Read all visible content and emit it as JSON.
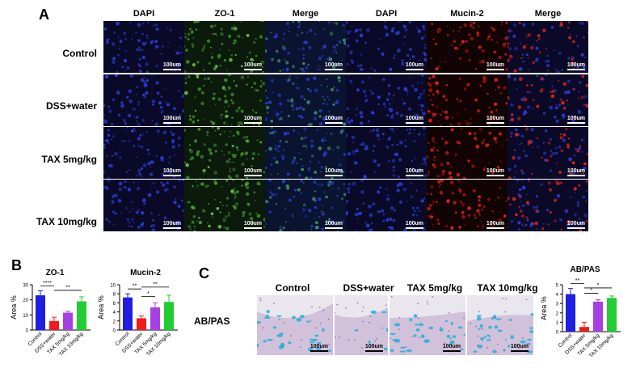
{
  "panels": {
    "a": "A",
    "b": "B",
    "c": "C"
  },
  "panel_a": {
    "columns": [
      "DAPI",
      "ZO-1",
      "Merge",
      "DAPI",
      "Mucin-2",
      "Merge"
    ],
    "rows": [
      "Control",
      "DSS+water",
      "TAX 5mg/kg",
      "TAX 10mg/kg"
    ],
    "scale_label": "100um"
  },
  "panel_c": {
    "columns": [
      "Control",
      "DSS+water",
      "TAX 5mg/kg",
      "TAX 10mg/kg"
    ],
    "row_label": "AB/PAS",
    "scale_label": "100um"
  },
  "colors": {
    "Control": "#1f1fe0",
    "DSS+water": "#ee1c1c",
    "TAX 5mg/kg": "#a640e0",
    "TAX 10mg/kg": "#22cc33"
  },
  "chart_data": [
    {
      "type": "bar",
      "title": "ZO-1",
      "ylabel": "Area %",
      "categories": [
        "Control",
        "DSS+water",
        "TAX 5mg/kg",
        "TAX 10mg/kg"
      ],
      "values": [
        23,
        6,
        11.5,
        19
      ],
      "errors": [
        3,
        2.5,
        1,
        3
      ],
      "ylim": [
        0,
        30
      ],
      "yticks": [
        0,
        10,
        20,
        30
      ],
      "significance": [
        {
          "from": 0,
          "to": 1,
          "label": "****"
        },
        {
          "from": 1,
          "to": 3,
          "label": "**"
        }
      ]
    },
    {
      "type": "bar",
      "title": "Mucin-2",
      "ylabel": "Area %",
      "categories": [
        "Control",
        "DSS+water",
        "TAX 5mg/kg",
        "TAX 10mg/kg"
      ],
      "values": [
        7.2,
        2.6,
        5,
        6.2
      ],
      "errors": [
        0.8,
        0.5,
        1,
        1.5
      ],
      "ylim": [
        0,
        10
      ],
      "yticks": [
        0,
        2,
        4,
        6,
        8,
        10
      ],
      "significance": [
        {
          "from": 0,
          "to": 1,
          "label": "**"
        },
        {
          "from": 1,
          "to": 2,
          "label": "*"
        },
        {
          "from": 1,
          "to": 3,
          "label": "**"
        }
      ]
    },
    {
      "type": "bar",
      "title": "AB/PAS",
      "ylabel": "Area %",
      "categories": [
        "Control",
        "DSS+water",
        "TAX 5mg/kg",
        "TAX 10mg/kg"
      ],
      "values": [
        4,
        0.5,
        3.2,
        3.6
      ],
      "errors": [
        0.6,
        0.5,
        0.2,
        0.2
      ],
      "ylim": [
        0,
        5
      ],
      "yticks": [
        0,
        1,
        2,
        3,
        4,
        5
      ],
      "significance": [
        {
          "from": 0,
          "to": 1,
          "label": "**"
        },
        {
          "from": 1,
          "to": 2,
          "label": "*"
        },
        {
          "from": 1,
          "to": 3,
          "label": "*"
        }
      ]
    }
  ]
}
